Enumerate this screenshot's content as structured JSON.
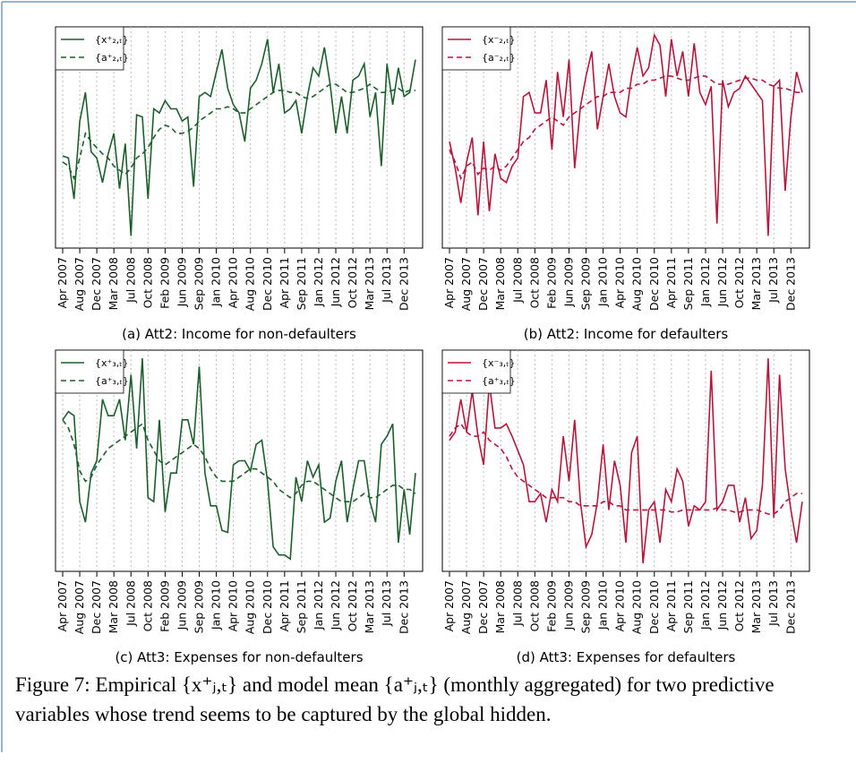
{
  "chart_data": [
    {
      "type": "line",
      "title": "(a) Att2: Income for non-defaulters",
      "grid": "x",
      "legend": "top-left",
      "ylim": [
        -4,
        104
      ],
      "categories": [
        "Apr 2007",
        null,
        null,
        "Aug 2007",
        null,
        null,
        "Dec 2007",
        null,
        null,
        "Mar 2008",
        null,
        null,
        "Jul 2008",
        null,
        null,
        "Oct 2008",
        null,
        null,
        "Feb 2009",
        null,
        null,
        "Jun 2009",
        null,
        null,
        "Sep 2009",
        null,
        null,
        "Jan 2010",
        null,
        null,
        "Apr 2010",
        null,
        null,
        "Aug 2010",
        null,
        null,
        "Dec 2010",
        null,
        null,
        "Apr 2011",
        null,
        null,
        "Sep 2011",
        null,
        null,
        "Jan 2012",
        null,
        null,
        "Jun 2012",
        null,
        null,
        "Oct 2012",
        null,
        null,
        "Mar 2013",
        null,
        null,
        "Jul 2013",
        null,
        null,
        "Dec 2013",
        null,
        null
      ],
      "series": [
        {
          "name": "{x⁺₂,ₜ}",
          "color": "#1d5e2c",
          "dash": false,
          "values": [
            41,
            40,
            20,
            58,
            72,
            43,
            40,
            28,
            42,
            52,
            25,
            47,
            2,
            61,
            60,
            20,
            64,
            62,
            68,
            64,
            64,
            58,
            60,
            26,
            70,
            72,
            70,
            82,
            93,
            74,
            66,
            62,
            48,
            74,
            78,
            86,
            98,
            72,
            86,
            62,
            64,
            68,
            52,
            70,
            84,
            80,
            94,
            76,
            52,
            70,
            52,
            78,
            80,
            86,
            60,
            72,
            36,
            86,
            66,
            84,
            70,
            72,
            88
          ]
        },
        {
          "name": "{a⁺₂,ₜ}",
          "color": "#1d5e2c",
          "dash": true,
          "values": [
            38,
            36,
            30,
            40,
            52,
            48,
            45,
            42,
            40,
            36,
            34,
            32,
            35,
            40,
            42,
            45,
            50,
            54,
            56,
            55,
            52,
            52,
            53,
            55,
            58,
            60,
            62,
            64,
            64,
            65,
            64,
            62,
            62,
            64,
            66,
            68,
            70,
            72,
            73,
            73,
            72,
            72,
            70,
            69,
            70,
            72,
            74,
            76,
            76,
            74,
            72,
            72,
            73,
            74,
            76,
            74,
            72,
            72,
            73,
            74,
            72,
            73,
            73
          ]
        }
      ]
    },
    {
      "type": "line",
      "title": "(b) Att2: Income for defaulters",
      "grid": "x",
      "legend": "top-left",
      "ylim": [
        -4,
        104
      ],
      "categories": [
        "Apr 2007",
        null,
        null,
        "Aug 2007",
        null,
        null,
        "Dec 2007",
        null,
        null,
        "Mar 2008",
        null,
        null,
        "Jul 2008",
        null,
        null,
        "Oct 2008",
        null,
        null,
        "Feb 2009",
        null,
        null,
        "Jun 2009",
        null,
        null,
        "Sep 2009",
        null,
        null,
        "Jan 2010",
        null,
        null,
        "Apr 2010",
        null,
        null,
        "Aug 2010",
        null,
        null,
        "Dec 2010",
        null,
        null,
        "Apr 2011",
        null,
        null,
        "Sep 2011",
        null,
        null,
        "Jan 2012",
        null,
        null,
        "Jun 2012",
        null,
        null,
        "Oct 2012",
        null,
        null,
        "Mar 2013",
        null,
        null,
        "Jul 2013",
        null,
        null,
        "Dec 2013",
        null,
        null
      ],
      "series": [
        {
          "name": "{x⁻₂,ₜ}",
          "color": "#b3173b",
          "dash": false,
          "values": [
            48,
            35,
            18,
            38,
            50,
            12,
            48,
            14,
            42,
            30,
            28,
            36,
            40,
            70,
            72,
            62,
            62,
            78,
            44,
            82,
            60,
            88,
            35,
            65,
            80,
            92,
            54,
            70,
            86,
            70,
            62,
            60,
            80,
            94,
            80,
            84,
            100,
            95,
            70,
            98,
            80,
            92,
            70,
            96,
            72,
            66,
            75,
            8,
            78,
            65,
            72,
            74,
            80,
            76,
            72,
            68,
            2,
            75,
            78,
            24,
            60,
            82,
            72
          ]
        },
        {
          "name": "{a⁻₂,ₜ}",
          "color": "#b3173b",
          "dash": true,
          "values": [
            44,
            38,
            30,
            36,
            38,
            32,
            35,
            34,
            36,
            34,
            36,
            40,
            44,
            48,
            50,
            54,
            56,
            58,
            60,
            58,
            56,
            60,
            62,
            64,
            66,
            68,
            70,
            70,
            72,
            72,
            72,
            74,
            74,
            76,
            76,
            78,
            78,
            79,
            80,
            80,
            79,
            78,
            78,
            79,
            80,
            80,
            78,
            76,
            76,
            76,
            77,
            78,
            79,
            79,
            78,
            78,
            76,
            75,
            74,
            74,
            73,
            72,
            72
          ]
        }
      ]
    },
    {
      "type": "line",
      "title": "(c) Att3: Expenses for non-defaulters",
      "grid": "x",
      "legend": "top-left",
      "ylim": [
        -4,
        104
      ],
      "categories": [
        "Apr 2007",
        null,
        null,
        "Aug 2007",
        null,
        null,
        "Dec 2007",
        null,
        null,
        "Mar 2008",
        null,
        null,
        "Jul 2008",
        null,
        null,
        "Oct 2008",
        null,
        null,
        "Feb 2009",
        null,
        null,
        "Jun 2009",
        null,
        null,
        "Sep 2009",
        null,
        null,
        "Jan 2010",
        null,
        null,
        "Apr 2010",
        null,
        null,
        "Aug 2010",
        null,
        null,
        "Dec 2010",
        null,
        null,
        "Apr 2011",
        null,
        null,
        "Sep 2011",
        null,
        null,
        "Jan 2012",
        null,
        null,
        "Jun 2012",
        null,
        null,
        "Oct 2012",
        null,
        null,
        "Mar 2013",
        null,
        null,
        "Jul 2013",
        null,
        null,
        "Dec 2013",
        null,
        null
      ],
      "series": [
        {
          "name": "{x⁺₃,ₜ}",
          "color": "#1d5e2c",
          "dash": false,
          "values": [
            70,
            74,
            72,
            30,
            20,
            44,
            50,
            80,
            72,
            72,
            80,
            60,
            92,
            56,
            100,
            32,
            30,
            70,
            25,
            44,
            44,
            70,
            70,
            58,
            96,
            44,
            28,
            28,
            16,
            15,
            48,
            50,
            50,
            45,
            58,
            60,
            40,
            8,
            4,
            4,
            2,
            42,
            30,
            50,
            42,
            48,
            20,
            22,
            40,
            50,
            20,
            36,
            50,
            50,
            30,
            20,
            58,
            62,
            68,
            10,
            36,
            14,
            44
          ]
        },
        {
          "name": "{a⁺₃,ₜ}",
          "color": "#1d5e2c",
          "dash": true,
          "values": [
            70,
            66,
            58,
            45,
            40,
            42,
            48,
            52,
            56,
            58,
            60,
            62,
            64,
            66,
            68,
            60,
            55,
            50,
            48,
            50,
            52,
            54,
            56,
            58,
            56,
            52,
            46,
            42,
            40,
            40,
            40,
            42,
            44,
            46,
            46,
            44,
            42,
            40,
            36,
            34,
            32,
            34,
            38,
            40,
            40,
            38,
            36,
            34,
            32,
            30,
            30,
            30,
            32,
            34,
            32,
            32,
            34,
            36,
            38,
            38,
            36,
            36,
            34
          ]
        }
      ]
    },
    {
      "type": "line",
      "title": "(d) Att3: Expenses for defaulters",
      "grid": "x",
      "legend": "top-left",
      "ylim": [
        -4,
        104
      ],
      "categories": [
        "Apr 2007",
        null,
        null,
        "Aug 2007",
        null,
        null,
        "Dec 2007",
        null,
        null,
        "Mar 2008",
        null,
        null,
        "Jul 2008",
        null,
        null,
        "Oct 2008",
        null,
        null,
        "Feb 2009",
        null,
        null,
        "Jun 2009",
        null,
        null,
        "Sep 2009",
        null,
        null,
        "Jan 2010",
        null,
        null,
        "Apr 2010",
        null,
        null,
        "Aug 2010",
        null,
        null,
        "Dec 2010",
        null,
        null,
        "Apr 2011",
        null,
        null,
        "Sep 2011",
        null,
        null,
        "Jan 2012",
        null,
        null,
        "Jun 2012",
        null,
        null,
        "Oct 2012",
        null,
        null,
        "Mar 2013",
        null,
        null,
        "Jul 2013",
        null,
        null,
        "Dec 2013",
        null,
        null
      ],
      "series": [
        {
          "name": "{x⁻₃,ₜ}",
          "color": "#b3173b",
          "dash": false,
          "values": [
            60,
            64,
            80,
            64,
            84,
            62,
            48,
            88,
            66,
            66,
            68,
            62,
            55,
            48,
            30,
            30,
            34,
            20,
            36,
            30,
            62,
            40,
            70,
            30,
            8,
            14,
            30,
            58,
            26,
            50,
            38,
            10,
            54,
            62,
            0,
            26,
            30,
            10,
            36,
            30,
            46,
            40,
            18,
            28,
            26,
            30,
            94,
            26,
            30,
            38,
            38,
            20,
            32,
            12,
            16,
            38,
            100,
            22,
            92,
            46,
            26,
            10,
            30
          ]
        },
        {
          "name": "{a⁺₃,ₜ}",
          "color": "#b3173b",
          "dash": true,
          "values": [
            62,
            66,
            68,
            64,
            62,
            62,
            64,
            60,
            58,
            56,
            52,
            46,
            42,
            40,
            38,
            36,
            34,
            32,
            32,
            32,
            32,
            30,
            30,
            28,
            28,
            28,
            28,
            30,
            30,
            28,
            28,
            26,
            26,
            26,
            26,
            26,
            26,
            26,
            26,
            25,
            25,
            26,
            26,
            26,
            26,
            26,
            26,
            27,
            26,
            26,
            25,
            25,
            26,
            26,
            26,
            25,
            24,
            24,
            26,
            30,
            32,
            34,
            34
          ]
        }
      ]
    }
  ],
  "caption": "Figure 7: Empirical {x⁺ⱼ,ₜ} and model mean {a⁺ⱼ,ₜ} (monthly aggregated) for two predictive variables whose trend seems to be captured by the global hidden."
}
